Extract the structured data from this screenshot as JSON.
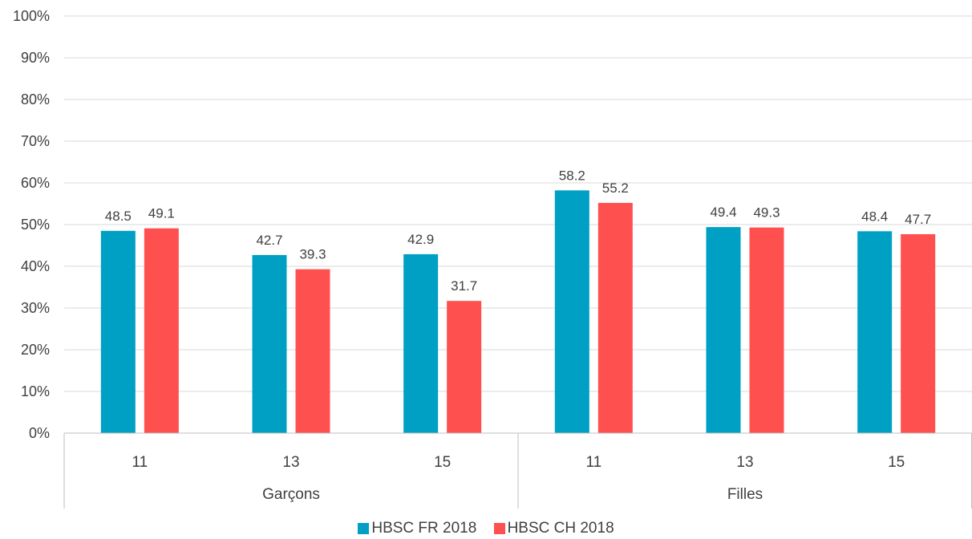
{
  "chart_data": {
    "type": "bar",
    "yaxis": {
      "ticks": [
        "0%",
        "10%",
        "20%",
        "30%",
        "40%",
        "50%",
        "60%",
        "70%",
        "80%",
        "90%",
        "100%"
      ],
      "ylim": [
        0,
        100
      ]
    },
    "grid": true,
    "groups": [
      {
        "label": "Garçons",
        "categories": [
          "11",
          "13",
          "15"
        ]
      },
      {
        "label": "Filles",
        "categories": [
          "11",
          "13",
          "15"
        ]
      }
    ],
    "series": [
      {
        "name": "HBSC FR 2018",
        "color": "#00A0C4",
        "values": [
          48.5,
          42.7,
          42.9,
          58.2,
          49.4,
          48.4
        ],
        "labels": [
          "48.5",
          "42.7",
          "42.9",
          "58.2",
          "49.4",
          "48.4"
        ]
      },
      {
        "name": "HBSC CH 2018",
        "color": "#FF5050",
        "values": [
          49.1,
          39.3,
          31.7,
          55.2,
          49.3,
          47.7
        ],
        "labels": [
          "49.1",
          "39.3",
          "31.7",
          "55.2",
          "49.3",
          "47.7"
        ]
      }
    ],
    "legend_position": "bottom"
  }
}
